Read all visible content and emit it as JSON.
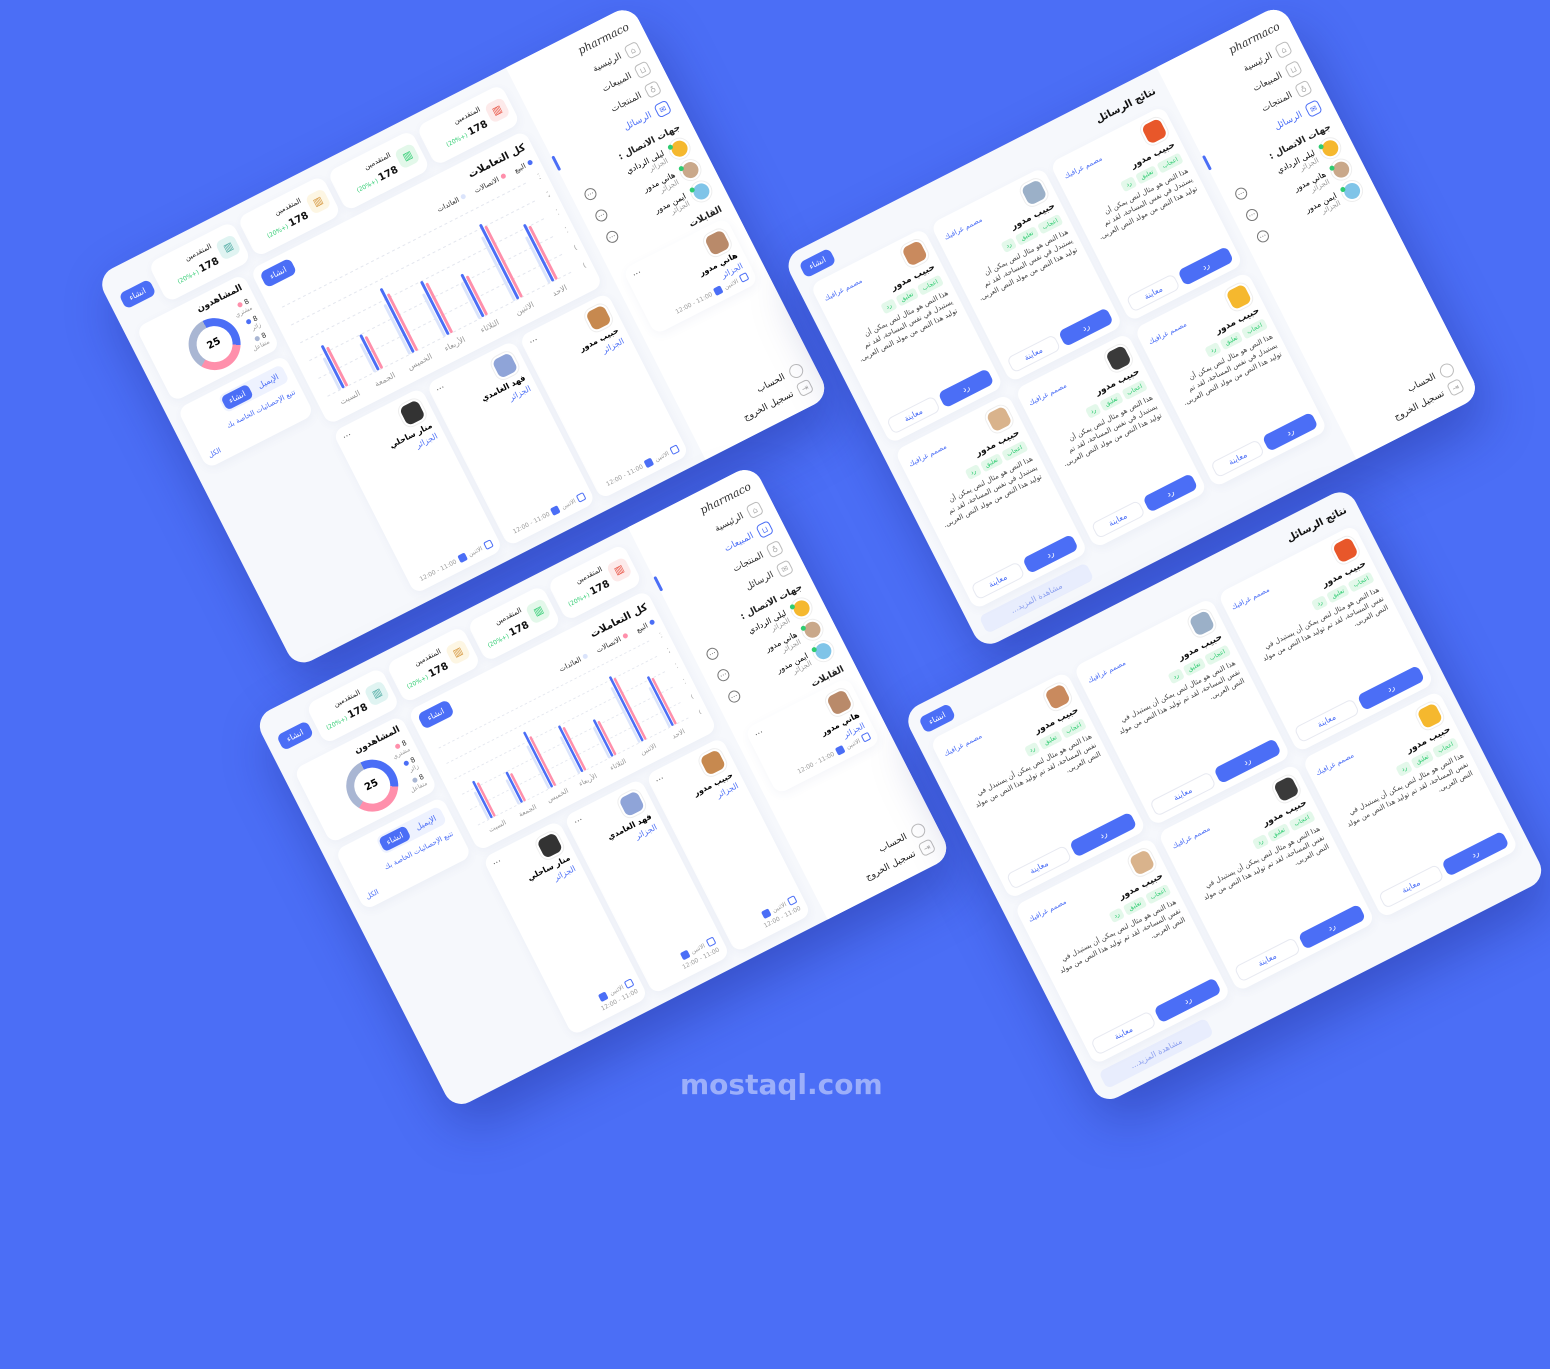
{
  "colors": {
    "background": "#4b6ef6",
    "accent": "#4b6ef6",
    "pink": "#ff8fab",
    "light": "#dbe4fb",
    "green": "#2ecc71"
  },
  "brand": {
    "logo": "pharmaco"
  },
  "sidebar": {
    "nav": [
      {
        "label": "الرئيسية",
        "icon": "home-icon",
        "glyph": "⌂"
      },
      {
        "label": "المبيعات",
        "icon": "cart-icon",
        "glyph": "⊔"
      },
      {
        "label": "المنتجات",
        "icon": "award-icon",
        "glyph": "♁"
      },
      {
        "label": "الرسائل",
        "icon": "message-icon",
        "glyph": "✉"
      }
    ],
    "contacts_title": "جهات الاتصال :",
    "contacts": [
      {
        "name": "ليلى الردادي",
        "location": "الجزائر",
        "color": "#f5b82e",
        "online": true
      },
      {
        "name": "هاني مدور",
        "location": "الجزائر",
        "color": "#c9a88a",
        "online": true
      },
      {
        "name": "ايمن مدور",
        "location": "الجزائر",
        "color": "#7fc4e8",
        "online": true
      }
    ],
    "meetings_title": "القابلات",
    "meeting": {
      "name": "هاني مدور",
      "location": "الجزائر",
      "time": "11:00 - 12:00",
      "day": "الاثنين"
    },
    "account": "الحساب",
    "logout": "تسجيل الخروج"
  },
  "dashboard": {
    "create_label": "انشاء",
    "stats": [
      {
        "label": "المتقدمين",
        "value": "178",
        "change": "(+20%)",
        "icon": "bar-chart-icon",
        "icon_color": "#e74c3c",
        "icon_bg": "#fdeaea"
      },
      {
        "label": "المتقدمين",
        "value": "178",
        "change": "(+20%)",
        "icon": "bar-chart-icon",
        "icon_color": "#2ecc71",
        "icon_bg": "#e3f8ea"
      },
      {
        "label": "المتقدمين",
        "value": "178",
        "change": "(+20%)",
        "icon": "bar-chart-icon",
        "icon_color": "#d4943a",
        "icon_bg": "#fdf6e3"
      },
      {
        "label": "المتقدمين",
        "value": "178",
        "change": "(+20%)",
        "icon": "bar-chart-icon",
        "icon_color": "#4aa8a0",
        "icon_bg": "#e0f4f2"
      }
    ],
    "viewers": {
      "title": "المشاهدون",
      "total": "25",
      "legend": [
        {
          "value": "8",
          "label": "مشتري",
          "color": "#ff8fab"
        },
        {
          "value": "8",
          "label": "زائر",
          "color": "#4b6ef6"
        },
        {
          "value": "8",
          "label": "متفاعل",
          "color": "#a9b6d3"
        }
      ]
    },
    "email": {
      "tab_active": "انشاء",
      "tab_other": "الإيميل",
      "link": "تتبع الإحصائيات الخاصة بك",
      "all": "الكل"
    },
    "meetings": [
      {
        "name": "حبيب مدور",
        "location": "الجزائر",
        "time": "11:00 - 12:00",
        "day": "الاثنين",
        "color": "#c7894f"
      },
      {
        "name": "فهد الغامدي",
        "location": "الجزائر",
        "time": "11:00 - 12:00",
        "day": "الاثنين",
        "color": "#8fa4d8"
      },
      {
        "name": "منار ساحلي",
        "location": "الجزائر",
        "time": "11:00 - 12:00",
        "day": "الاثنين",
        "color": "#333333"
      }
    ],
    "more_label": "..."
  },
  "chart_data": {
    "type": "bar",
    "title": "كل التعاملات",
    "create_label": "انشاء",
    "categories": [
      "الاحد",
      "الاثنين",
      "الثلاثاء",
      "الأربعاء",
      "الخميس",
      "الجمعة",
      "السبت"
    ],
    "y_ticks": [
      "01",
      "05",
      "10",
      "15",
      "20",
      "30"
    ],
    "y_tick_values": [
      1,
      5,
      10,
      15,
      20,
      30
    ],
    "grid": true,
    "legend_position": "top",
    "series": [
      {
        "name": "البيع",
        "color": "#4b6ef6",
        "values": [
          16,
          22,
          12,
          15,
          18,
          10,
          12
        ]
      },
      {
        "name": "الاتصالات",
        "color": "#ff8fab",
        "values": [
          15,
          20,
          11,
          14,
          16,
          9,
          11
        ]
      },
      {
        "name": "العائدات",
        "color": "#dbe4fb",
        "values": [
          13,
          18,
          10,
          12,
          14,
          8,
          9
        ]
      }
    ]
  },
  "messages_page": {
    "title": "نتائج الرسائل",
    "create_label": "انشاء",
    "see_more": "مشاهدة المزيد...",
    "cards": [
      {
        "name": "حبيب مدور",
        "role": "مصمم غرافيك",
        "tags": [
          "اعجاب",
          "تعليق",
          "رد"
        ],
        "text": "هذا النص هو مثال لنص يمكن أن يستبدل في نفس المساحة، لقد تم توليد هذا النص من مولد النص العربى.",
        "reply": "رد",
        "preview": "معاينة",
        "color": "#e8572a"
      },
      {
        "name": "حبيب مدور",
        "role": "مصمم غرافيك",
        "tags": [
          "اعجاب",
          "تعليق",
          "رد"
        ],
        "text": "هذا النص هو مثال لنص يمكن أن يستبدل في نفس المساحة، لقد تم توليد هذا النص من مولد النص العربى.",
        "reply": "رد",
        "preview": "معاينة",
        "color": "#9bb0c8"
      },
      {
        "name": "حبيب مدور",
        "role": "مصمم غرافيك",
        "tags": [
          "اعجاب",
          "تعليق",
          "رد"
        ],
        "text": "هذا النص هو مثال لنص يمكن أن يستبدل في نفس المساحة، لقد تم توليد هذا النص من مولد النص العربى.",
        "reply": "رد",
        "preview": "معاينة",
        "color": "#c98a5e"
      },
      {
        "name": "حبيب مدور",
        "role": "مصمم غرافيك",
        "tags": [
          "اعجاب",
          "تعليق",
          "رد"
        ],
        "text": "هذا النص هو مثال لنص يمكن أن يستبدل في نفس المساحة، لقد تم توليد هذا النص من مولد النص العربى.",
        "reply": "رد",
        "preview": "معاينة",
        "color": "#f5b82e"
      },
      {
        "name": "حبيب مدور",
        "role": "مصمم غرافيك",
        "tags": [
          "اعجاب",
          "تعليق",
          "رد"
        ],
        "text": "هذا النص هو مثال لنص يمكن أن يستبدل في نفس المساحة، لقد تم توليد هذا النص من مولد النص العربى.",
        "reply": "رد",
        "preview": "معاينة",
        "color": "#3a3a3a"
      },
      {
        "name": "حبيب مدور",
        "role": "مصمم غرافيك",
        "tags": [
          "اعجاب",
          "تعليق",
          "رد"
        ],
        "text": "هذا النص هو مثال لنص يمكن أن يستبدل في نفس المساحة، لقد تم توليد هذا النص من مولد النص العربى.",
        "reply": "رد",
        "preview": "معاينة",
        "color": "#d9b38c"
      }
    ]
  },
  "watermark": "mostaql.com"
}
